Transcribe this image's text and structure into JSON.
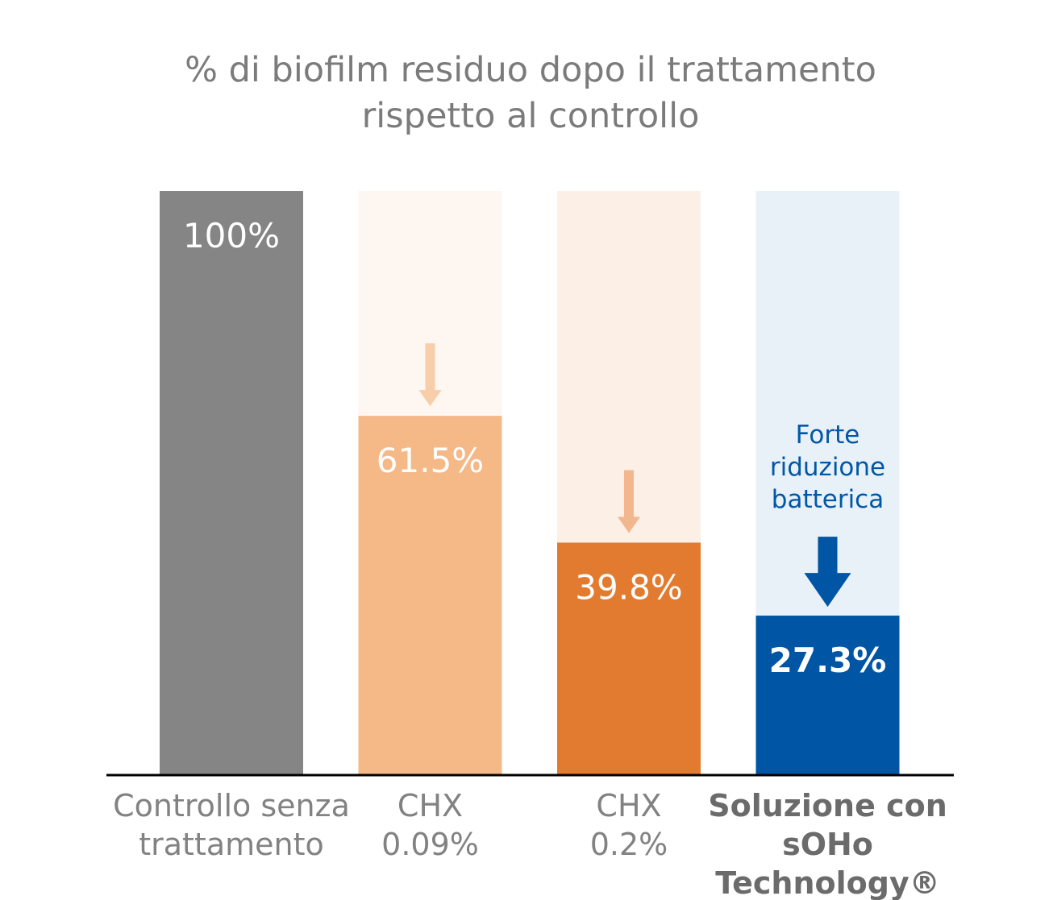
{
  "chart_data": {
    "type": "bar",
    "title": "% di biofilm residuo dopo il trattamento rispetto al controllo",
    "title_lines": [
      "% di biofilm residuo dopo il trattamento",
      "rispetto al controllo"
    ],
    "ylim": [
      0,
      100
    ],
    "grid": false,
    "categories": [
      {
        "lines": [
          "Controllo senza",
          "trattamento"
        ],
        "bold": false,
        "value": 100,
        "label": "100%",
        "color": "#858585",
        "ghost": null,
        "arrow": null
      },
      {
        "lines": [
          "CHX",
          "0.09%"
        ],
        "bold": false,
        "value": 61.5,
        "label": "61.5%",
        "color": "#f5b887",
        "ghost": "#fdf6f1",
        "arrow": {
          "color": "#f8cdaa",
          "size": "small"
        }
      },
      {
        "lines": [
          "CHX",
          "0.2%"
        ],
        "bold": false,
        "value": 39.8,
        "label": "39.8%",
        "color": "#e27b2f",
        "ghost": "#fcefe6",
        "arrow": {
          "color": "#f2b78e",
          "size": "small"
        }
      },
      {
        "lines": [
          "Soluzione con",
          "sOHo",
          "Technology®"
        ],
        "bold": true,
        "value": 27.3,
        "label": "27.3%",
        "color": "#0055a4",
        "ghost": "#e8f0f8",
        "arrow": {
          "color": "#0055a4",
          "size": "large"
        },
        "note": [
          "Forte",
          "riduzione",
          "batterica"
        ]
      }
    ],
    "values": [
      100,
      61.5,
      39.8,
      27.3
    ]
  }
}
